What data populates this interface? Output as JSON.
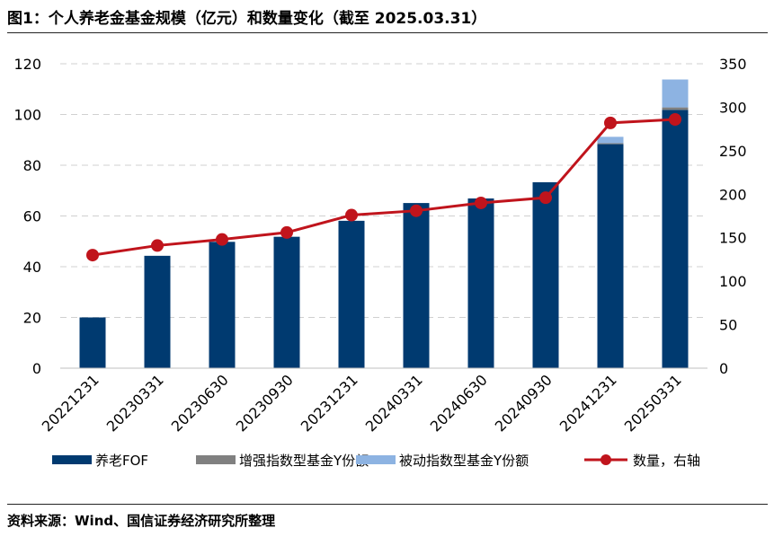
{
  "title": "图1：个人养老金基金规模（亿元）和数量变化（截至 2025.03.31）",
  "source": "资料来源：Wind、国信证券经济研究所整理",
  "chart_data": {
    "type": "bar",
    "categories": [
      "20221231",
      "20230331",
      "20230630",
      "20230930",
      "20231231",
      "20240331",
      "20240630",
      "20240930",
      "20241231",
      "20250331"
    ],
    "series": [
      {
        "name": "养老FOF",
        "kind": "bar",
        "axis": "left",
        "color": "#003a70",
        "values": [
          20,
          44.3,
          49.8,
          51.8,
          58.1,
          65.1,
          66.9,
          73.3,
          88.3,
          101.8
        ]
      },
      {
        "name": "增强指数型基金Y份额",
        "kind": "bar",
        "axis": "left",
        "color": "#808080",
        "values": [
          0,
          0,
          0,
          0,
          0,
          0,
          0,
          0,
          0.4,
          1.0
        ]
      },
      {
        "name": "被动指数型基金Y份额",
        "kind": "bar",
        "axis": "left",
        "color": "#8db3e2",
        "values": [
          0,
          0,
          0,
          0,
          0,
          0,
          0,
          0,
          2.5,
          11.0
        ]
      },
      {
        "name": "数量，右轴",
        "kind": "line",
        "axis": "right",
        "color": "#c0141c",
        "values": [
          130,
          141,
          148,
          156,
          176,
          181,
          190,
          196,
          282,
          286
        ]
      }
    ],
    "y_left": {
      "range": [
        0,
        120
      ],
      "ticks": [
        0,
        20,
        40,
        60,
        80,
        100,
        120
      ]
    },
    "y_right": {
      "range": [
        0,
        350
      ],
      "ticks": [
        0,
        50,
        100,
        150,
        200,
        250,
        300,
        350
      ]
    },
    "stacked": true,
    "grid": true,
    "legend_position": "bottom"
  }
}
